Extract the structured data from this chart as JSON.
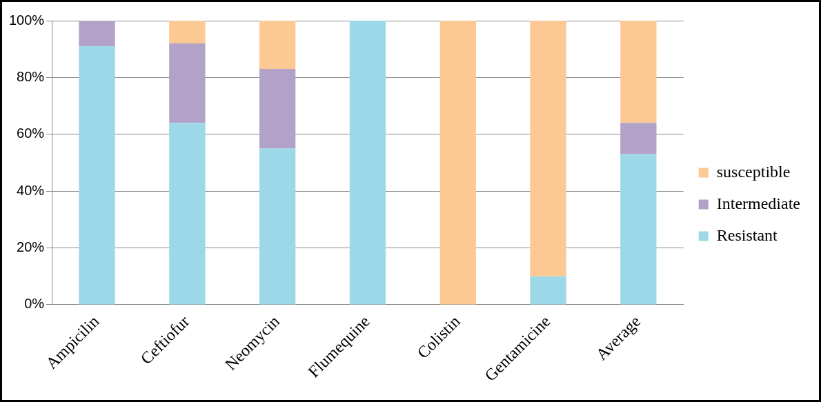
{
  "chart_data": {
    "type": "bar",
    "stacked": true,
    "categories": [
      "Ampicilin",
      "Ceftiofur",
      "Neomycin",
      "Flumequine",
      "Colistin",
      "Gentamicine",
      "Average"
    ],
    "series": [
      {
        "name": "Resistant",
        "color": "#9dd8e8",
        "values": [
          91,
          64,
          55,
          100,
          0,
          10,
          53
        ]
      },
      {
        "name": "Intermediate",
        "color": "#b3a2c7",
        "values": [
          9,
          28,
          28,
          0,
          0,
          0,
          11
        ]
      },
      {
        "name": "susceptible",
        "color": "#fcc893",
        "values": [
          0,
          8,
          17,
          0,
          100,
          90,
          36
        ]
      }
    ],
    "ylim": [
      0,
      100
    ],
    "yticks": [
      {
        "value": 0,
        "label": "0%"
      },
      {
        "value": 20,
        "label": "20%"
      },
      {
        "value": 40,
        "label": "40%"
      },
      {
        "value": 60,
        "label": "60%"
      },
      {
        "value": 80,
        "label": "80%"
      },
      {
        "value": 100,
        "label": "100%"
      }
    ],
    "grid": "y",
    "legend": "right"
  }
}
